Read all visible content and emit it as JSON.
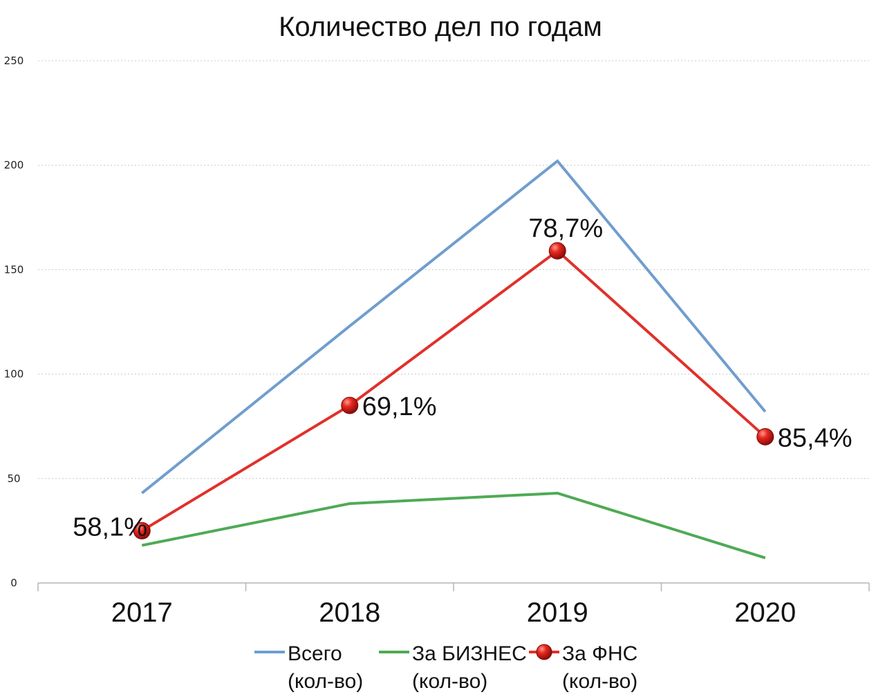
{
  "chart_data": {
    "type": "line",
    "title": "Количество дел по годам",
    "categories": [
      "2017",
      "2018",
      "2019",
      "2020"
    ],
    "ylim": [
      0,
      250
    ],
    "yticks": [
      0,
      50,
      100,
      150,
      200,
      250
    ],
    "grid": true,
    "legend_position": "bottom",
    "series": [
      {
        "name_line1": "Всего",
        "name_line2": "(кол-во)",
        "color": "#6f9dcf",
        "markers": false,
        "values": [
          43,
          123,
          202,
          82
        ]
      },
      {
        "name_line1": "За БИЗНЕС",
        "name_line2": "(кол-во)",
        "color": "#4faa55",
        "markers": false,
        "values": [
          18,
          38,
          43,
          12
        ]
      },
      {
        "name_line1": "За ФНС",
        "name_line2": "(кол-во)",
        "color": "#e0312a",
        "markers": true,
        "values": [
          25,
          85,
          159,
          70
        ],
        "data_labels": [
          "58,1%",
          "69,1%",
          "78,7%",
          "85,4%"
        ]
      }
    ]
  }
}
